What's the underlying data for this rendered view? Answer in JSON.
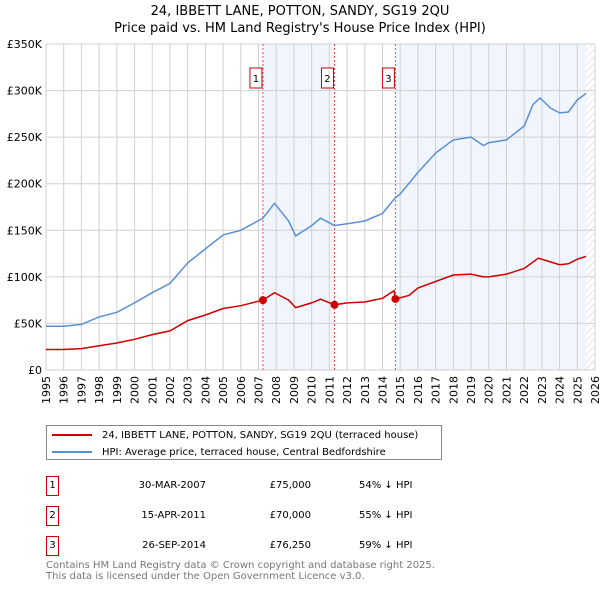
{
  "title": "24, IBBETT LANE, POTTON, SANDY, SG19 2QU",
  "subtitle": "Price paid vs. HM Land Registry's House Price Index (HPI)",
  "chart_data": {
    "type": "line",
    "title": "24, IBBETT LANE, POTTON, SANDY, SG19 2QU",
    "subtitle": "Price paid vs. HM Land Registry's House Price Index (HPI)",
    "xlim": [
      1995,
      2026
    ],
    "ylim": [
      0,
      350000
    ],
    "x_ticks": [
      "1995",
      "1996",
      "1997",
      "1998",
      "1999",
      "2000",
      "2001",
      "2002",
      "2003",
      "2004",
      "2005",
      "2006",
      "2007",
      "2008",
      "2009",
      "2010",
      "2011",
      "2012",
      "2013",
      "2014",
      "2015",
      "2016",
      "2017",
      "2018",
      "2019",
      "2020",
      "2021",
      "2022",
      "2023",
      "2024",
      "2025",
      "2026"
    ],
    "y_ticks": [
      {
        "v": 0,
        "label": "£0"
      },
      {
        "v": 50000,
        "label": "£50K"
      },
      {
        "v": 100000,
        "label": "£100K"
      },
      {
        "v": 150000,
        "label": "£150K"
      },
      {
        "v": 200000,
        "label": "£200K"
      },
      {
        "v": 250000,
        "label": "£250K"
      },
      {
        "v": 300000,
        "label": "£300K"
      },
      {
        "v": 350000,
        "label": "£350K"
      }
    ],
    "grid": true,
    "shaded_ranges": [
      [
        2007.25,
        2011.29
      ],
      [
        2014.73,
        2025.5
      ]
    ],
    "hatched_from": 2025.5,
    "series": [
      {
        "name": "24, IBBETT LANE, POTTON, SANDY, SG19 2QU (terraced house)",
        "color": "#cc0000",
        "x": [
          1995,
          1996,
          1997,
          1998,
          1999,
          2000,
          2001,
          2002,
          2003,
          2004,
          2005,
          2006,
          2007.25,
          2007.9,
          2008.7,
          2009.1,
          2010,
          2010.5,
          2011.29,
          2012,
          2013,
          2014,
          2014.65,
          2014.73,
          2015.5,
          2016,
          2017,
          2018,
          2019,
          2019.7,
          2020,
          2021,
          2022,
          2022.8,
          2023.5,
          2024,
          2024.5,
          2025,
          2025.5
        ],
        "y": [
          22000,
          22000,
          23000,
          26000,
          29000,
          33000,
          38000,
          42000,
          53000,
          59000,
          66000,
          69000,
          75000,
          83000,
          75000,
          67000,
          72000,
          76000,
          70000,
          72000,
          73000,
          77000,
          85000,
          76250,
          80000,
          88000,
          95000,
          102000,
          103000,
          100000,
          100000,
          103000,
          109000,
          120000,
          116000,
          113000,
          114000,
          119000,
          122000
        ]
      },
      {
        "name": "HPI: Average price, terraced house, Central Bedfordshire",
        "color": "#5b8fd4",
        "x": [
          1995,
          1996,
          1997,
          1998,
          1999,
          2000,
          2001,
          2002,
          2003,
          2004,
          2005,
          2006,
          2007.25,
          2007.9,
          2008.7,
          2009.1,
          2010,
          2010.5,
          2011.29,
          2012,
          2013,
          2014,
          2014.73,
          2015,
          2016,
          2017,
          2018,
          2019,
          2019.7,
          2020,
          2021,
          2022,
          2022.5,
          2022.9,
          2023.5,
          2024,
          2024.5,
          2025,
          2025.5
        ],
        "y": [
          47000,
          47000,
          49000,
          57000,
          62000,
          72000,
          83000,
          93000,
          115000,
          130000,
          145000,
          150000,
          163000,
          179000,
          160000,
          144000,
          155000,
          163000,
          155000,
          157000,
          160000,
          168000,
          185000,
          189000,
          212000,
          233000,
          247000,
          250000,
          241000,
          244000,
          247000,
          262000,
          285000,
          292000,
          281000,
          276000,
          277000,
          290000,
          297000
        ]
      }
    ],
    "sales": [
      {
        "id": "1",
        "x": 2007.25,
        "y": 75000
      },
      {
        "id": "2",
        "x": 2011.29,
        "y": 70000
      },
      {
        "id": "3",
        "x": 2014.73,
        "y": 76250
      }
    ]
  },
  "legend": [
    {
      "label": "24, IBBETT LANE, POTTON, SANDY, SG19 2QU (terraced house)",
      "color": "#cc0000"
    },
    {
      "label": "HPI: Average price, terraced house, Central Bedfordshire",
      "color": "#5b8fd4"
    }
  ],
  "transactions": [
    {
      "num": "1",
      "date": "30-MAR-2007",
      "price": "£75,000",
      "hpi": "54% ↓ HPI"
    },
    {
      "num": "2",
      "date": "15-APR-2011",
      "price": "£70,000",
      "hpi": "55% ↓ HPI"
    },
    {
      "num": "3",
      "date": "26-SEP-2014",
      "price": "£76,250",
      "hpi": "59% ↓ HPI"
    }
  ],
  "footer": [
    "Contains HM Land Registry data © Crown copyright and database right 2025.",
    "This data is licensed under the Open Government Licence v3.0."
  ]
}
